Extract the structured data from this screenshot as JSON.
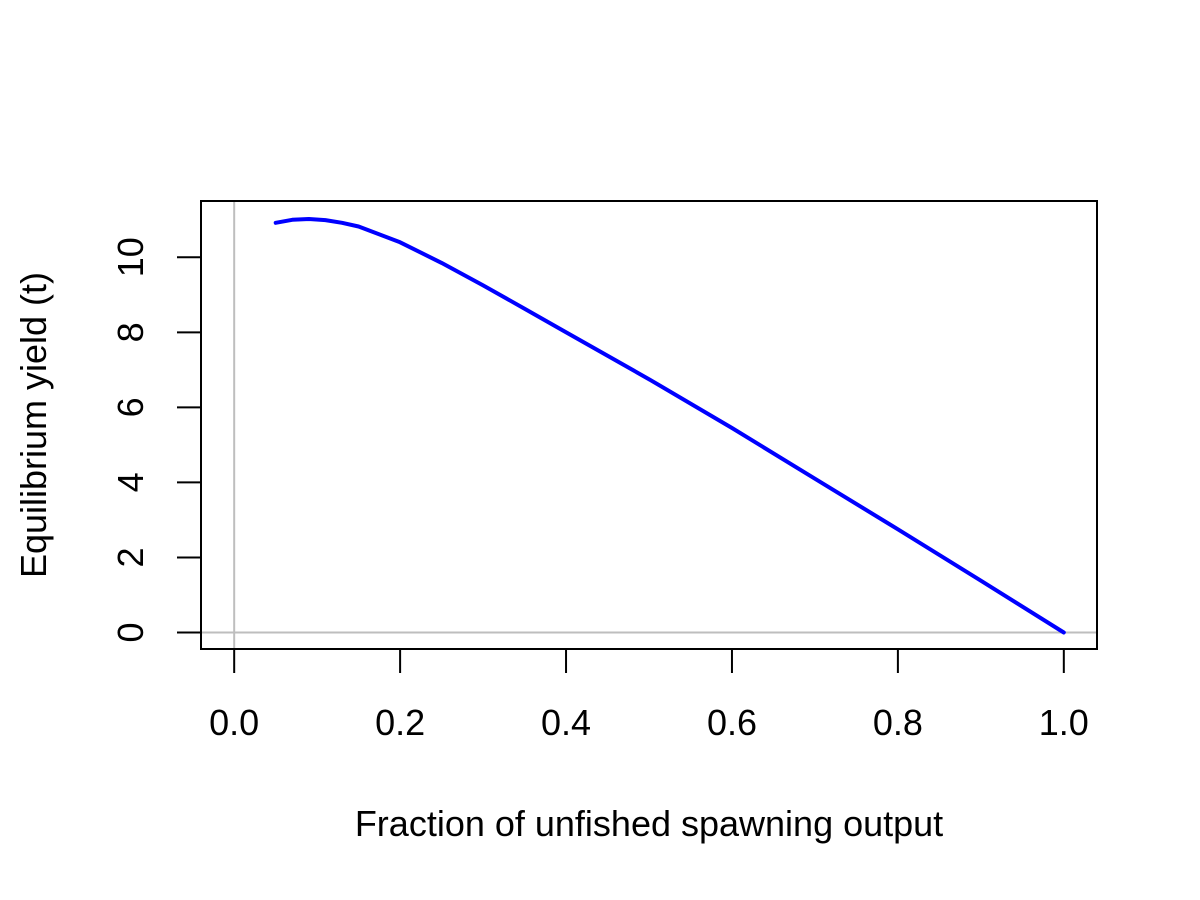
{
  "chart_data": {
    "type": "line",
    "title": "",
    "xlabel": "Fraction of unfished spawning output",
    "ylabel": "Equilibrium yield (t)",
    "xlim": [
      -0.04,
      1.04
    ],
    "ylim": [
      -0.44,
      11.5
    ],
    "x_ticks": [
      0.0,
      0.2,
      0.4,
      0.6,
      0.8,
      1.0
    ],
    "x_tick_labels": [
      "0.0",
      "0.2",
      "0.4",
      "0.6",
      "0.8",
      "1.0"
    ],
    "y_ticks": [
      0,
      2,
      4,
      6,
      8,
      10
    ],
    "y_tick_labels": [
      "0",
      "2",
      "4",
      "6",
      "8",
      "10"
    ],
    "reference_lines": {
      "x": 0,
      "y": 0,
      "color": "#bebebe"
    },
    "grid": false,
    "legend": "none",
    "series": [
      {
        "color": "#0000ff",
        "x": [
          0.05,
          0.07,
          0.09,
          0.11,
          0.13,
          0.15,
          0.2,
          0.25,
          0.3,
          0.35,
          0.4,
          0.5,
          0.6,
          0.7,
          0.8,
          0.9,
          1.0
        ],
        "y": [
          10.92,
          11.0,
          11.02,
          10.99,
          10.92,
          10.82,
          10.4,
          9.85,
          9.25,
          8.63,
          8.0,
          6.75,
          5.45,
          4.1,
          2.75,
          1.38,
          0.0
        ]
      }
    ]
  }
}
